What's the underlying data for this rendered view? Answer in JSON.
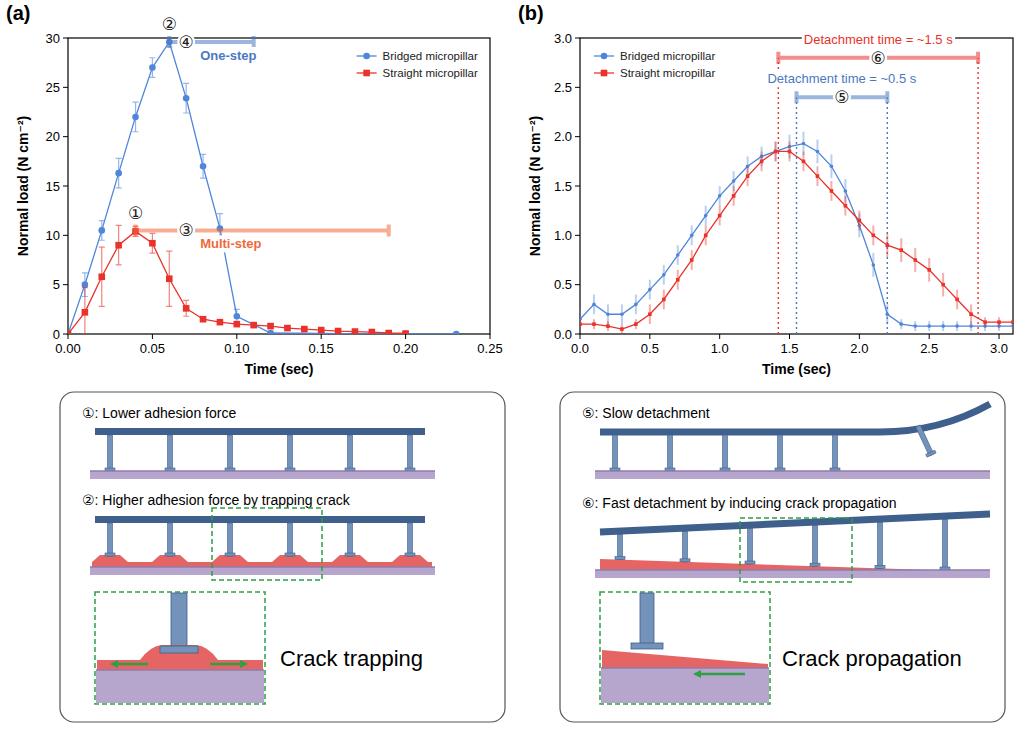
{
  "chart_data": [
    {
      "type": "line",
      "panel_label": "(a)",
      "x_label": "Time (sec)",
      "y_label": "Normal load (N cm⁻²)",
      "xlim": [
        0,
        0.25
      ],
      "ylim": [
        0,
        30
      ],
      "xticks": [
        {
          "value": 0,
          "label": "0.00"
        },
        {
          "value": 0.05,
          "label": "0.05"
        },
        {
          "value": 0.1,
          "label": "0.10"
        },
        {
          "value": 0.15,
          "label": "0.15"
        },
        {
          "value": 0.2,
          "label": "0.20"
        },
        {
          "value": 0.25,
          "label": "0.25"
        }
      ],
      "yticks": [
        0,
        5,
        10,
        15,
        20,
        25,
        30
      ],
      "grid": false,
      "legend": "upper right",
      "series": [
        {
          "name": "Bridged micropillar",
          "color": "#4f86d9",
          "marker": "circle",
          "line_style": "solid",
          "x": [
            0,
            0.01,
            0.02,
            0.03,
            0.04,
            0.05,
            0.06,
            0.07,
            0.08,
            0.09,
            0.1,
            0.12,
            0.15,
            0.17,
            0.2,
            0.23
          ],
          "values": [
            0,
            5.0,
            10.5,
            16.3,
            22.0,
            27.0,
            29.6,
            23.9,
            17.0,
            10.7,
            1.8,
            0.1,
            0.05,
            0.02,
            0,
            0
          ],
          "errors": [
            0,
            1.2,
            1.0,
            1.5,
            1.5,
            1.0,
            0.5,
            1.5,
            1.2,
            1.5,
            0.7,
            0.1,
            0,
            0,
            0,
            0
          ]
        },
        {
          "name": "Straight micropillar",
          "color": "#e8322b",
          "marker": "square",
          "line_style": "solid",
          "x": [
            0,
            0.01,
            0.02,
            0.03,
            0.04,
            0.05,
            0.06,
            0.07,
            0.08,
            0.09,
            0.1,
            0.11,
            0.12,
            0.13,
            0.14,
            0.15,
            0.16,
            0.17,
            0.18,
            0.19,
            0.2
          ],
          "values": [
            0,
            2.2,
            5.8,
            9.0,
            10.4,
            9.2,
            5.6,
            2.6,
            1.5,
            1.2,
            1.0,
            0.9,
            0.8,
            0.6,
            0.5,
            0.4,
            0.3,
            0.25,
            0.2,
            0.1,
            0.05
          ],
          "errors": [
            0,
            2.5,
            3.0,
            2.0,
            0.5,
            1.0,
            2.8,
            0.8,
            0.2,
            0.2,
            0.2,
            0.2,
            0.2,
            0.2,
            0.2,
            0.1,
            0.1,
            0.1,
            0.1,
            0.1,
            0.1
          ]
        }
      ],
      "markers": [
        {
          "text": "①",
          "x": 0.04,
          "y": 10.4
        },
        {
          "text": "②",
          "x": 0.06,
          "y": 29.6
        }
      ],
      "spans": [
        {
          "label": "④",
          "text": "One-step",
          "x_start": 0.06,
          "x_end": 0.11,
          "y": 29.6,
          "color": "#4a78c2",
          "line_style": "solid"
        },
        {
          "label": "③",
          "text": "Multi-step",
          "x_start": 0.04,
          "x_end": 0.19,
          "y": 10.5,
          "color": "#ee6a3c",
          "line_style": "solid"
        }
      ]
    },
    {
      "type": "line",
      "panel_label": "(b)",
      "x_label": "Time (sec)",
      "y_label": "Normal load (N cm⁻²)",
      "xlim": [
        0,
        3.1
      ],
      "ylim": [
        0,
        3
      ],
      "xticks": [
        {
          "value": 0,
          "label": "0.0"
        },
        {
          "value": 0.5,
          "label": "0.5"
        },
        {
          "value": 1,
          "label": "1.0"
        },
        {
          "value": 1.5,
          "label": "1.5"
        },
        {
          "value": 2,
          "label": "2.0"
        },
        {
          "value": 2.5,
          "label": "2.5"
        },
        {
          "value": 3,
          "label": "3.0"
        }
      ],
      "yticks": [
        {
          "value": 0,
          "label": "0.0"
        },
        {
          "value": 0.5,
          "label": "0.5"
        },
        {
          "value": 1,
          "label": "1.0"
        },
        {
          "value": 1.5,
          "label": "1.5"
        },
        {
          "value": 2,
          "label": "2.0"
        },
        {
          "value": 2.5,
          "label": "2.5"
        },
        {
          "value": 3,
          "label": "3.0"
        }
      ],
      "grid": false,
      "legend": "upper left",
      "x": [
        0,
        0.1,
        0.2,
        0.3,
        0.4,
        0.5,
        0.6,
        0.7,
        0.8,
        0.9,
        1.0,
        1.1,
        1.2,
        1.3,
        1.4,
        1.5,
        1.6,
        1.7,
        1.8,
        1.9,
        2.0,
        2.1,
        2.2,
        2.3,
        2.4,
        2.5,
        2.6,
        2.7,
        2.8,
        2.9,
        3.0,
        3.1
      ],
      "series": [
        {
          "name": "Bridged micropillar",
          "color": "#4f86d9",
          "marker": "circle",
          "line_style": "solid",
          "values": [
            0.15,
            0.3,
            0.2,
            0.2,
            0.3,
            0.45,
            0.6,
            0.8,
            1.0,
            1.2,
            1.4,
            1.55,
            1.7,
            1.8,
            1.85,
            1.9,
            1.93,
            1.85,
            1.7,
            1.45,
            1.1,
            0.7,
            0.2,
            0.1,
            0.08,
            0.08,
            0.08,
            0.08,
            0.08,
            0.08,
            0.08,
            0.08
          ],
          "errors": [
            0.1,
            0.1,
            0.1,
            0.1,
            0.1,
            0.1,
            0.1,
            0.1,
            0.1,
            0.1,
            0.1,
            0.1,
            0.1,
            0.1,
            0.1,
            0.12,
            0.12,
            0.12,
            0.12,
            0.12,
            0.12,
            0.12,
            0.1,
            0.05,
            0.05,
            0.05,
            0.05,
            0.05,
            0.05,
            0.05,
            0.05,
            0.05
          ]
        },
        {
          "name": "Straight micropillar",
          "color": "#e8322b",
          "marker": "square",
          "line_style": "solid",
          "values": [
            0.1,
            0.1,
            0.08,
            0.05,
            0.1,
            0.2,
            0.35,
            0.55,
            0.75,
            1.0,
            1.2,
            1.4,
            1.6,
            1.75,
            1.85,
            1.85,
            1.75,
            1.6,
            1.45,
            1.3,
            1.15,
            1.0,
            0.9,
            0.85,
            0.75,
            0.65,
            0.5,
            0.35,
            0.2,
            0.12,
            0.12,
            0.12
          ],
          "errors": [
            0.05,
            0.05,
            0.05,
            0.05,
            0.05,
            0.1,
            0.1,
            0.1,
            0.1,
            0.1,
            0.1,
            0.1,
            0.1,
            0.1,
            0.1,
            0.1,
            0.1,
            0.1,
            0.1,
            0.1,
            0.1,
            0.1,
            0.12,
            0.12,
            0.12,
            0.12,
            0.12,
            0.1,
            0.1,
            0.05,
            0.05,
            0.05
          ]
        }
      ],
      "spans": [
        {
          "label": "⑥",
          "text": "Detachment time = ~1.5 s",
          "x_start": 1.42,
          "x_end": 2.85,
          "y": 2.8,
          "color": "#e8322b",
          "line_style": "dotted"
        },
        {
          "label": "⑤",
          "text": "Detachment time = ~0.5 s",
          "x_start": 1.55,
          "x_end": 2.2,
          "y": 2.4,
          "color": "#4a78c2",
          "line_style": "dotted"
        }
      ]
    }
  ],
  "diagrams": [
    {
      "items": [
        "①: Lower adhesion force",
        "②: Higher adhesion force by trapping crack"
      ],
      "inset_label": "Crack trapping"
    },
    {
      "items": [
        "⑤: Slow detachment",
        "⑥: Fast detachment by inducing crack propagation"
      ],
      "inset_label": "Crack propagation"
    }
  ]
}
